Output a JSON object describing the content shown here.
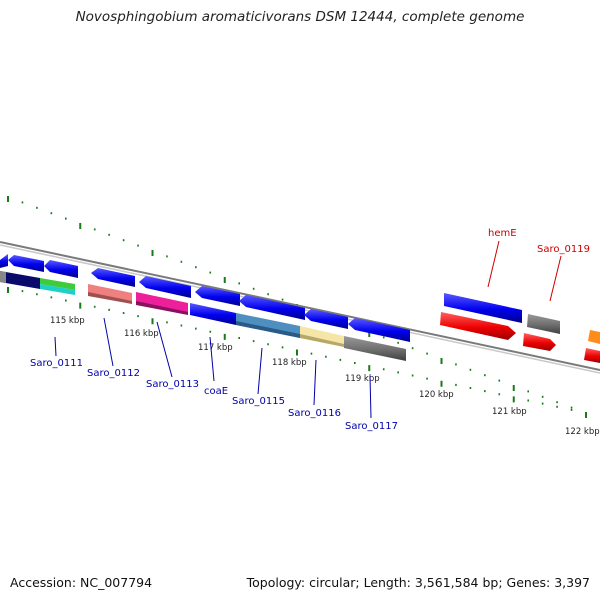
{
  "title": "Novosphingobium aromaticivorans DSM 12444, complete genome",
  "footer": {
    "accession": "Accession: NC_007794",
    "summary": "Topology: circular; Length: 3,561,584 bp; Genes: 3,397"
  },
  "scale": {
    "ticks": [
      "115 kbp",
      "116 kbp",
      "117 kbp",
      "118 kbp",
      "119 kbp",
      "120 kbp",
      "121 kbp",
      "122 kbp"
    ],
    "tick_color": "#1a7a1a"
  },
  "colors": {
    "forward_strand_label": "#cc0000",
    "reverse_strand_label": "#0000aa",
    "backbone": "#888888"
  },
  "genes": {
    "saro_0111": "Saro_0111",
    "saro_0112": "Saro_0112",
    "saro_0113": "Saro_0113",
    "coae": "coaE",
    "saro_0115": "Saro_0115",
    "saro_0116": "Saro_0116",
    "saro_0117": "Saro_0117",
    "heme": "hemE",
    "saro_0119": "Saro_0119"
  }
}
